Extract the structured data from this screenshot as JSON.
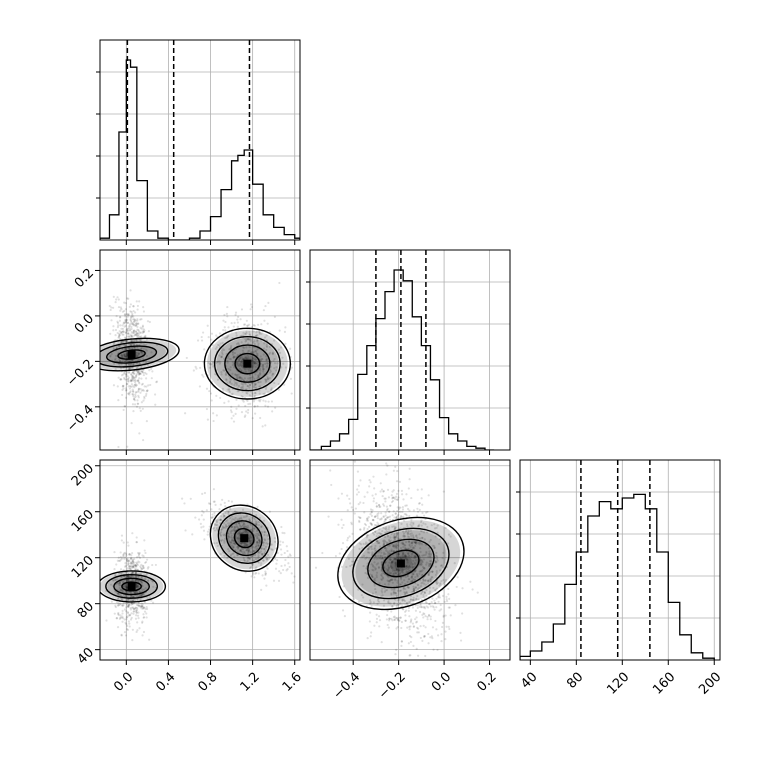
{
  "chart_data": {
    "type": "corner",
    "grid": true,
    "parameters": [
      {
        "range": [
          -0.25,
          1.65
        ],
        "ticks": [
          "0.0",
          "0.4",
          "0.8",
          "1.2",
          "1.6"
        ],
        "tick_values": [
          0.0,
          0.4,
          0.8,
          1.2,
          1.6
        ]
      },
      {
        "range": [
          -0.59,
          0.29
        ],
        "ticks": [
          "−0.4",
          "−0.2",
          "0.0",
          "0.2"
        ],
        "tick_values": [
          -0.4,
          -0.2,
          0.0,
          0.2
        ]
      },
      {
        "range": [
          31,
          205
        ],
        "ticks": [
          "40",
          "80",
          "120",
          "160",
          "200"
        ],
        "tick_values": [
          40,
          80,
          120,
          160,
          200
        ]
      }
    ],
    "histograms": [
      {
        "parameter": 0,
        "bin_edges": [
          -0.25,
          -0.16,
          -0.07,
          0.0,
          0.04,
          0.1,
          0.2,
          0.3,
          0.4,
          0.5,
          0.6,
          0.7,
          0.8,
          0.9,
          1.0,
          1.06,
          1.12,
          1.2,
          1.3,
          1.4,
          1.5,
          1.6,
          1.65
        ],
        "counts": [
          0.01,
          0.14,
          0.6,
          1.0,
          0.96,
          0.33,
          0.05,
          0.01,
          0.0,
          0.0,
          0.01,
          0.05,
          0.13,
          0.28,
          0.44,
          0.47,
          0.5,
          0.31,
          0.14,
          0.07,
          0.03,
          0.01
        ],
        "quantiles": [
          0.01,
          0.45,
          1.17
        ]
      },
      {
        "parameter": 1,
        "bin_edges": [
          -0.59,
          -0.54,
          -0.5,
          -0.46,
          -0.42,
          -0.38,
          -0.34,
          -0.3,
          -0.26,
          -0.22,
          -0.18,
          -0.14,
          -0.1,
          -0.06,
          -0.02,
          0.02,
          0.06,
          0.1,
          0.14,
          0.18,
          0.22
        ],
        "counts": [
          0.0,
          0.02,
          0.05,
          0.09,
          0.17,
          0.42,
          0.58,
          0.73,
          0.88,
          1.0,
          0.94,
          0.74,
          0.58,
          0.39,
          0.18,
          0.09,
          0.05,
          0.02,
          0.01,
          0.0
        ],
        "quantiles": [
          -0.3,
          -0.19,
          -0.08
        ]
      },
      {
        "parameter": 2,
        "bin_edges": [
          31,
          40,
          50,
          60,
          70,
          80,
          90,
          100,
          110,
          120,
          130,
          140,
          150,
          160,
          170,
          180,
          190,
          200
        ],
        "counts": [
          0.02,
          0.05,
          0.1,
          0.2,
          0.42,
          0.6,
          0.8,
          0.88,
          0.84,
          0.9,
          0.92,
          0.84,
          0.6,
          0.32,
          0.14,
          0.04,
          0.01
        ],
        "quantiles": [
          84,
          116,
          144
        ]
      }
    ],
    "pairs": [
      {
        "x_param": 0,
        "y_param": 1,
        "modes": [
          {
            "center": [
              0.05,
              -0.17
            ],
            "sd": [
              0.07,
              0.1
            ],
            "corr": -0.3,
            "weight": 0.52
          },
          {
            "center": [
              1.15,
              -0.21
            ],
            "sd": [
              0.16,
              0.09
            ],
            "corr": 0.0,
            "weight": 0.48
          }
        ]
      },
      {
        "x_param": 0,
        "y_param": 2,
        "modes": [
          {
            "center": [
              0.05,
              95
            ],
            "sd": [
              0.07,
              14
            ],
            "corr": 0.0,
            "weight": 0.52
          },
          {
            "center": [
              1.12,
              137
            ],
            "sd": [
              0.16,
              13
            ],
            "corr": -0.6,
            "weight": 0.48
          }
        ]
      },
      {
        "x_param": 1,
        "y_param": 2,
        "modes": [
          {
            "center": [
              -0.19,
              115
            ],
            "sd": [
              0.09,
              27
            ],
            "corr": -0.35,
            "weight": 1.0
          }
        ]
      }
    ]
  }
}
